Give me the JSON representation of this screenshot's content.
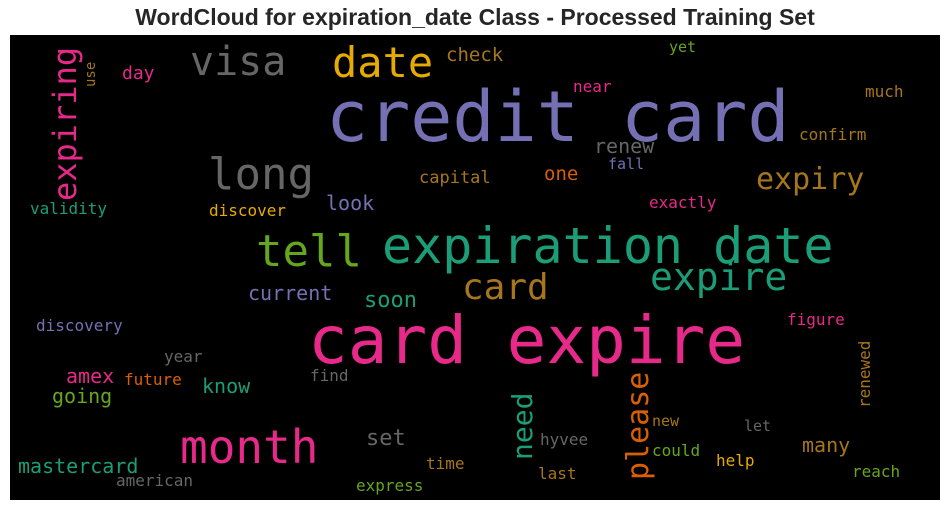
{
  "chart_data": {
    "type": "wordcloud",
    "title": "WordCloud for expiration_date Class - Processed Training Set",
    "background": "#000000",
    "words": [
      {
        "text": "credit card",
        "weight": 100,
        "color": "#7570b3"
      },
      {
        "text": "card expire",
        "weight": 95,
        "color": "#e7298a"
      },
      {
        "text": "expiration date",
        "weight": 80,
        "color": "#1b9e77"
      },
      {
        "text": "month",
        "weight": 62,
        "color": "#e7298a"
      },
      {
        "text": "date",
        "weight": 55,
        "color": "#e6ab02"
      },
      {
        "text": "visa",
        "weight": 52,
        "color": "#666666"
      },
      {
        "text": "long",
        "weight": 58,
        "color": "#666666"
      },
      {
        "text": "tell",
        "weight": 55,
        "color": "#66a61e"
      },
      {
        "text": "expire",
        "weight": 52,
        "color": "#1b9e77"
      },
      {
        "text": "card",
        "weight": 50,
        "color": "#a6761d"
      },
      {
        "text": "expiring",
        "weight": 44,
        "color": "#e7298a"
      },
      {
        "text": "expiry",
        "weight": 40,
        "color": "#a6761d"
      },
      {
        "text": "please",
        "weight": 40,
        "color": "#d95f02"
      },
      {
        "text": "need",
        "weight": 38,
        "color": "#1b9e77"
      },
      {
        "text": "soon",
        "weight": 30,
        "color": "#1b9e77"
      },
      {
        "text": "set",
        "weight": 30,
        "color": "#666666"
      },
      {
        "text": "renew",
        "weight": 26,
        "color": "#666666"
      },
      {
        "text": "look",
        "weight": 26,
        "color": "#7570b3"
      },
      {
        "text": "current",
        "weight": 26,
        "color": "#7570b3"
      },
      {
        "text": "know",
        "weight": 25,
        "color": "#1b9e77"
      },
      {
        "text": "going",
        "weight": 25,
        "color": "#66a61e"
      },
      {
        "text": "amex",
        "weight": 24,
        "color": "#e7298a"
      },
      {
        "text": "mastercard",
        "weight": 24,
        "color": "#1b9e77"
      },
      {
        "text": "many",
        "weight": 24,
        "color": "#a6761d"
      },
      {
        "text": "check",
        "weight": 24,
        "color": "#a6761d"
      },
      {
        "text": "one",
        "weight": 23,
        "color": "#d95f02"
      },
      {
        "text": "day",
        "weight": 22,
        "color": "#e7298a"
      },
      {
        "text": "capital",
        "weight": 19,
        "color": "#a6761d"
      },
      {
        "text": "discover",
        "weight": 18,
        "color": "#e6ab02"
      },
      {
        "text": "validity",
        "weight": 18,
        "color": "#1b9e77"
      },
      {
        "text": "exactly",
        "weight": 18,
        "color": "#e7298a"
      },
      {
        "text": "confirm",
        "weight": 18,
        "color": "#a6761d"
      },
      {
        "text": "much",
        "weight": 18,
        "color": "#a6761d"
      },
      {
        "text": "figure",
        "weight": 18,
        "color": "#e7298a"
      },
      {
        "text": "renewed",
        "weight": 17,
        "color": "#a6761d"
      },
      {
        "text": "discovery",
        "weight": 17,
        "color": "#7570b3"
      },
      {
        "text": "future",
        "weight": 17,
        "color": "#d95f02"
      },
      {
        "text": "year",
        "weight": 17,
        "color": "#666666"
      },
      {
        "text": "find",
        "weight": 17,
        "color": "#666666"
      },
      {
        "text": "hyvee",
        "weight": 17,
        "color": "#666666"
      },
      {
        "text": "could",
        "weight": 17,
        "color": "#66a61e"
      },
      {
        "text": "new",
        "weight": 16,
        "color": "#a6761d"
      },
      {
        "text": "let",
        "weight": 16,
        "color": "#666666"
      },
      {
        "text": "help",
        "weight": 17,
        "color": "#e6ab02"
      },
      {
        "text": "time",
        "weight": 16,
        "color": "#a6761d"
      },
      {
        "text": "last",
        "weight": 16,
        "color": "#a6761d"
      },
      {
        "text": "reach",
        "weight": 17,
        "color": "#66a61e"
      },
      {
        "text": "american",
        "weight": 17,
        "color": "#666666"
      },
      {
        "text": "express",
        "weight": 17,
        "color": "#66a61e"
      },
      {
        "text": "near",
        "weight": 16,
        "color": "#e7298a"
      },
      {
        "text": "yet",
        "weight": 16,
        "color": "#66a61e"
      },
      {
        "text": "fall",
        "weight": 16,
        "color": "#7570b3"
      },
      {
        "text": "use",
        "weight": 14,
        "color": "#a6761d"
      }
    ]
  }
}
